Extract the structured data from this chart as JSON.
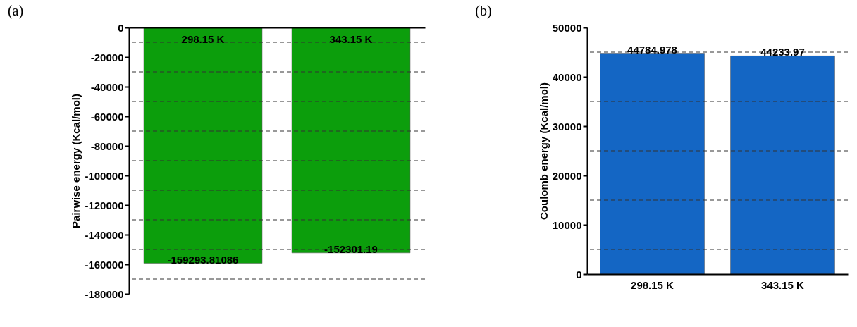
{
  "chart_data": [
    {
      "type": "bar",
      "title": "(a)",
      "ylabel": "Pairwise energy (Kcal/mol)",
      "categories": [
        "298.15 K",
        "343.15 K"
      ],
      "values": [
        -159293.81086,
        -152301.19
      ],
      "color": "#0c9e0c",
      "ylim": [
        -180000,
        0
      ],
      "yticks": [
        0,
        {
          "value": -10000,
          "label": null
        },
        -20000,
        {
          "value": -30000,
          "label": null
        },
        -40000,
        {
          "value": -50000,
          "label": null
        },
        -60000,
        {
          "value": -70000,
          "label": null
        },
        -80000,
        {
          "value": -90000,
          "label": null
        },
        -100000,
        {
          "value": -110000,
          "label": null
        },
        -120000,
        {
          "value": -130000,
          "label": null
        },
        -140000,
        {
          "value": -150000,
          "label": null
        },
        -160000,
        {
          "value": -170000,
          "label": null
        },
        -180000
      ],
      "grid": true,
      "data_labels": true
    },
    {
      "type": "bar",
      "title": "(b)",
      "ylabel": "Coulomb energy (Kcal/mol)",
      "categories": [
        "298.15 K",
        "343.15 K"
      ],
      "values": [
        44784.978,
        44233.97
      ],
      "color": "#1466c4",
      "ylim": [
        0,
        50000
      ],
      "yticks": [
        0,
        {
          "value": 5000,
          "label": null
        },
        10000,
        {
          "value": 15000,
          "label": null
        },
        20000,
        {
          "value": 25000,
          "label": null
        },
        30000,
        {
          "value": 35000,
          "label": null
        },
        40000,
        {
          "value": 45000,
          "label": null
        },
        50000
      ],
      "grid": true,
      "data_labels": true
    }
  ]
}
